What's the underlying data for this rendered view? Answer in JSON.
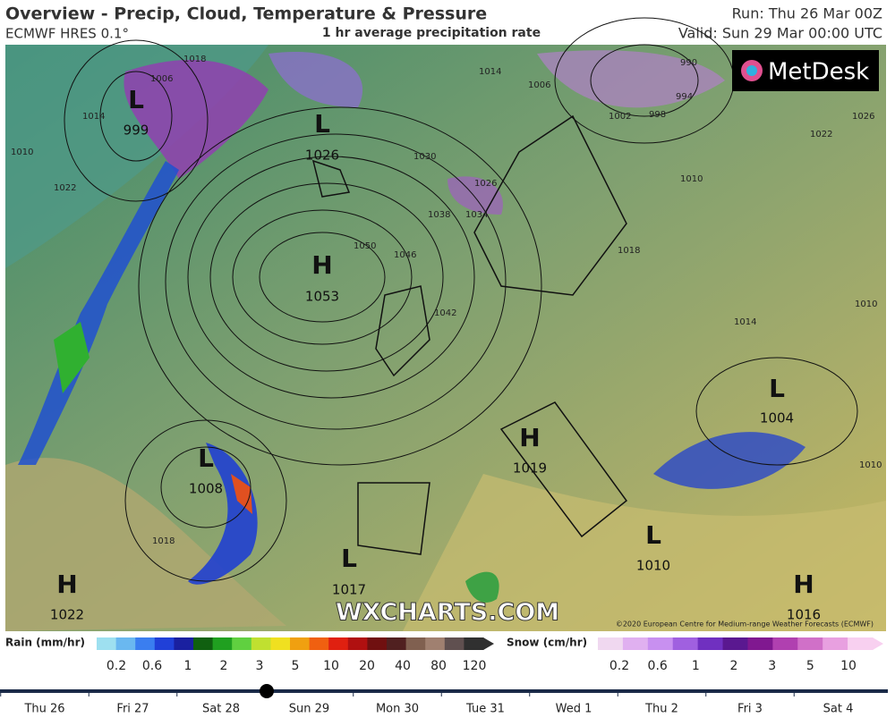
{
  "header": {
    "title": "Overview - Precip, Cloud, Temperature & Pressure",
    "model": "ECMWF HRES 0.1°",
    "field": "1 hr average precipitation rate",
    "run": "Run: Thu 26 Mar 00Z",
    "valid": "Valid: Sun 29 Mar 00:00 UTC"
  },
  "map": {
    "logo": "MetDesk",
    "watermark": "WXCHARTS.COM",
    "credit": "©2020 European Centre for Medium-range Weather Forecasts (ECMWF)",
    "centers": [
      {
        "symbol": "L",
        "value": 999
      },
      {
        "symbol": "L",
        "value": 1026
      },
      {
        "symbol": "H",
        "value": 1053
      },
      {
        "symbol": "L",
        "value": 1008
      },
      {
        "symbol": "H",
        "value": 1022
      },
      {
        "symbol": "L",
        "value": 1017
      },
      {
        "symbol": "H",
        "value": 1019
      },
      {
        "symbol": "L",
        "value": 1010
      },
      {
        "symbol": "L",
        "value": 1004
      },
      {
        "symbol": "H",
        "value": 1016
      }
    ],
    "isobar_labels": [
      1018,
      1006,
      1014,
      1010,
      1022,
      1030,
      1038,
      1034,
      1026,
      1046,
      1050,
      1042,
      1014,
      1006,
      1002,
      998,
      994,
      990,
      1022,
      1010,
      1018,
      1026,
      1014,
      1010,
      1018,
      1010
    ]
  },
  "legend": {
    "rain": {
      "label": "Rain (mm/hr)",
      "ticks": [
        0.2,
        0.6,
        1,
        2,
        3,
        5,
        10,
        20,
        40,
        80,
        120
      ],
      "colors": [
        "#9ee0f0",
        "#6ab8f0",
        "#3a7ef0",
        "#2040d8",
        "#1a20a0",
        "#106010",
        "#20a020",
        "#60d040",
        "#c0e030",
        "#f0e020",
        "#f0a010",
        "#f06010",
        "#e02010",
        "#b01010",
        "#701010",
        "#502020",
        "#806050",
        "#a08070",
        "#605050",
        "#303030"
      ]
    },
    "snow": {
      "label": "Snow (cm/hr)",
      "ticks": [
        0.2,
        0.6,
        1,
        2,
        3,
        5,
        10
      ],
      "colors": [
        "#f0d8f0",
        "#e0b0f0",
        "#c890f0",
        "#a060e0",
        "#7030c0",
        "#5a1890",
        "#801890",
        "#b040b0",
        "#d070c8",
        "#e8a0e0",
        "#f8d0f0"
      ]
    }
  },
  "timeline": {
    "days": [
      "Thu 26",
      "Fri 27",
      "Sat 28",
      "Sun 29",
      "Mon 30",
      "Tue 31",
      "Wed 1",
      "Thu 2",
      "Fri 3",
      "Sat 4"
    ]
  }
}
